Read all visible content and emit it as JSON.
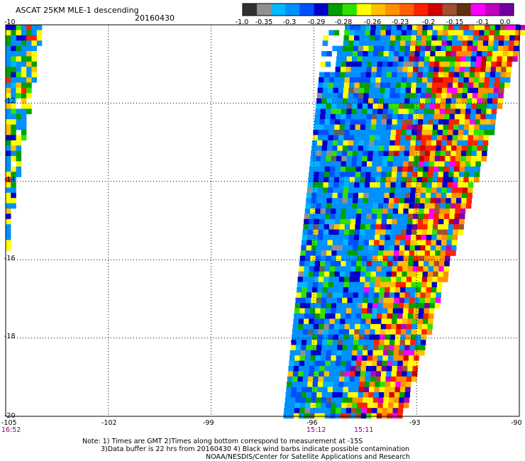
{
  "header": {
    "title": "ASCAT 25KM MLE-1 descending",
    "date": "20160430"
  },
  "colorbar": {
    "labels": [
      "-1.0",
      "-0.35",
      "-0.3",
      "-0.29",
      "-0.28",
      "-0.26",
      "-0.23",
      "-0.2",
      "-0.15",
      "-0.1",
      "0.0"
    ],
    "colors": [
      "#303030",
      "#909090",
      "#00b8ff",
      "#0090ff",
      "#0050ff",
      "#0000c8",
      "#00a000",
      "#30e000",
      "#ffff00",
      "#ffc000",
      "#ff9000",
      "#ff6000",
      "#ff2000",
      "#d00000",
      "#a05030",
      "#603010",
      "#ff00ff",
      "#c000c0",
      "#7000a0"
    ]
  },
  "axes": {
    "lat_labels": [
      "-10",
      "-12",
      "-14",
      "-16",
      "-18",
      "-20"
    ],
    "lon_labels": [
      "-105",
      "-102",
      "-99",
      "-96",
      "-93",
      "-90"
    ]
  },
  "times": [
    {
      "label": "16:52"
    },
    {
      "label": "15:12"
    },
    {
      "label": "15:11"
    }
  ],
  "notes": {
    "line1": "Note: 1) Times are GMT 2)Times along bottom correspond to measurement at -15S",
    "line2": "3)Data buffer is 22 hrs from 20160430 4) Black wind barbs indicate possible contamination",
    "line3": "NOAA/NESDIS/Center for Satellite Applications and Research"
  },
  "swaths": [
    {
      "name": "west-swath",
      "lon_west": -105.0,
      "lon_east": -104.0,
      "lat_north": -10.0,
      "lat_south": -15.7
    },
    {
      "name": "main-swath",
      "lon_north_west": -95.7,
      "lon_north_east": -89.9,
      "lon_south_west": -96.9,
      "lon_south_east": -93.5,
      "lat_north": -10.0,
      "lat_south": -20.0
    }
  ]
}
